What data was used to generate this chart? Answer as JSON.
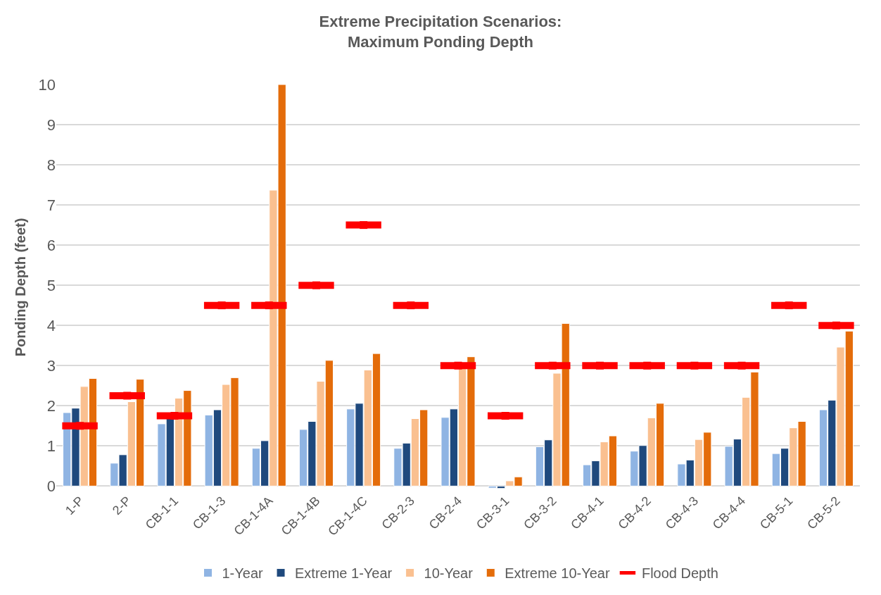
{
  "chart_data": {
    "type": "bar",
    "title": "Extreme Precipitation Scenarios:\nMaximum Ponding Depth",
    "ylabel": "Ponding Depth (feet)",
    "categories": [
      "1-P",
      "2-P",
      "CB-1-1",
      "CB-1-3",
      "CB-1-4A",
      "CB-1-4B",
      "CB-1-4C",
      "CB-2-3",
      "CB-2-4",
      "CB-3-1",
      "CB-3-2",
      "CB-4-1",
      "CB-4-2",
      "CB-4-3",
      "CB-4-4",
      "CB-5-1",
      "CB-5-2"
    ],
    "series": [
      {
        "name": "1-Year",
        "color": "#8fb4e3",
        "values": [
          1.83,
          0.57,
          1.55,
          1.77,
          0.94,
          1.41,
          1.92,
          0.94,
          1.71,
          -0.05,
          0.98,
          0.53,
          0.87,
          0.55,
          0.99,
          0.81,
          1.9
        ]
      },
      {
        "name": "Extreme 1-Year",
        "color": "#1f497d",
        "values": [
          1.94,
          0.78,
          1.68,
          1.9,
          1.13,
          1.61,
          2.06,
          1.07,
          1.92,
          -0.06,
          1.15,
          0.63,
          1.01,
          0.65,
          1.17,
          0.94,
          2.14
        ]
      },
      {
        "name": "10-Year",
        "color": "#fac090",
        "values": [
          2.48,
          2.1,
          2.19,
          2.53,
          7.37,
          2.61,
          2.89,
          1.68,
          2.95,
          0.13,
          2.81,
          1.1,
          1.7,
          1.16,
          2.21,
          1.45,
          3.46
        ]
      },
      {
        "name": "Extreme 10-Year",
        "color": "#e46c0a",
        "values": [
          2.68,
          2.66,
          2.38,
          2.7,
          10.0,
          3.13,
          3.3,
          1.9,
          3.22,
          0.23,
          4.05,
          1.25,
          2.06,
          1.34,
          2.84,
          1.61,
          3.86
        ]
      },
      {
        "name": "Flood Depth",
        "color": "#ff0000",
        "type": "scatter",
        "marker": "square",
        "values": [
          1.5,
          2.25,
          1.75,
          4.5,
          4.5,
          5.0,
          6.5,
          4.5,
          3.0,
          1.75,
          3.0,
          3.0,
          3.0,
          3.0,
          3.0,
          4.5,
          4.0
        ]
      }
    ],
    "ylim": [
      -0.1,
      10
    ],
    "yticks": [
      0,
      1,
      2,
      3,
      4,
      5,
      6,
      7,
      8,
      9,
      10
    ],
    "grid": "y",
    "legend": "bottom"
  }
}
